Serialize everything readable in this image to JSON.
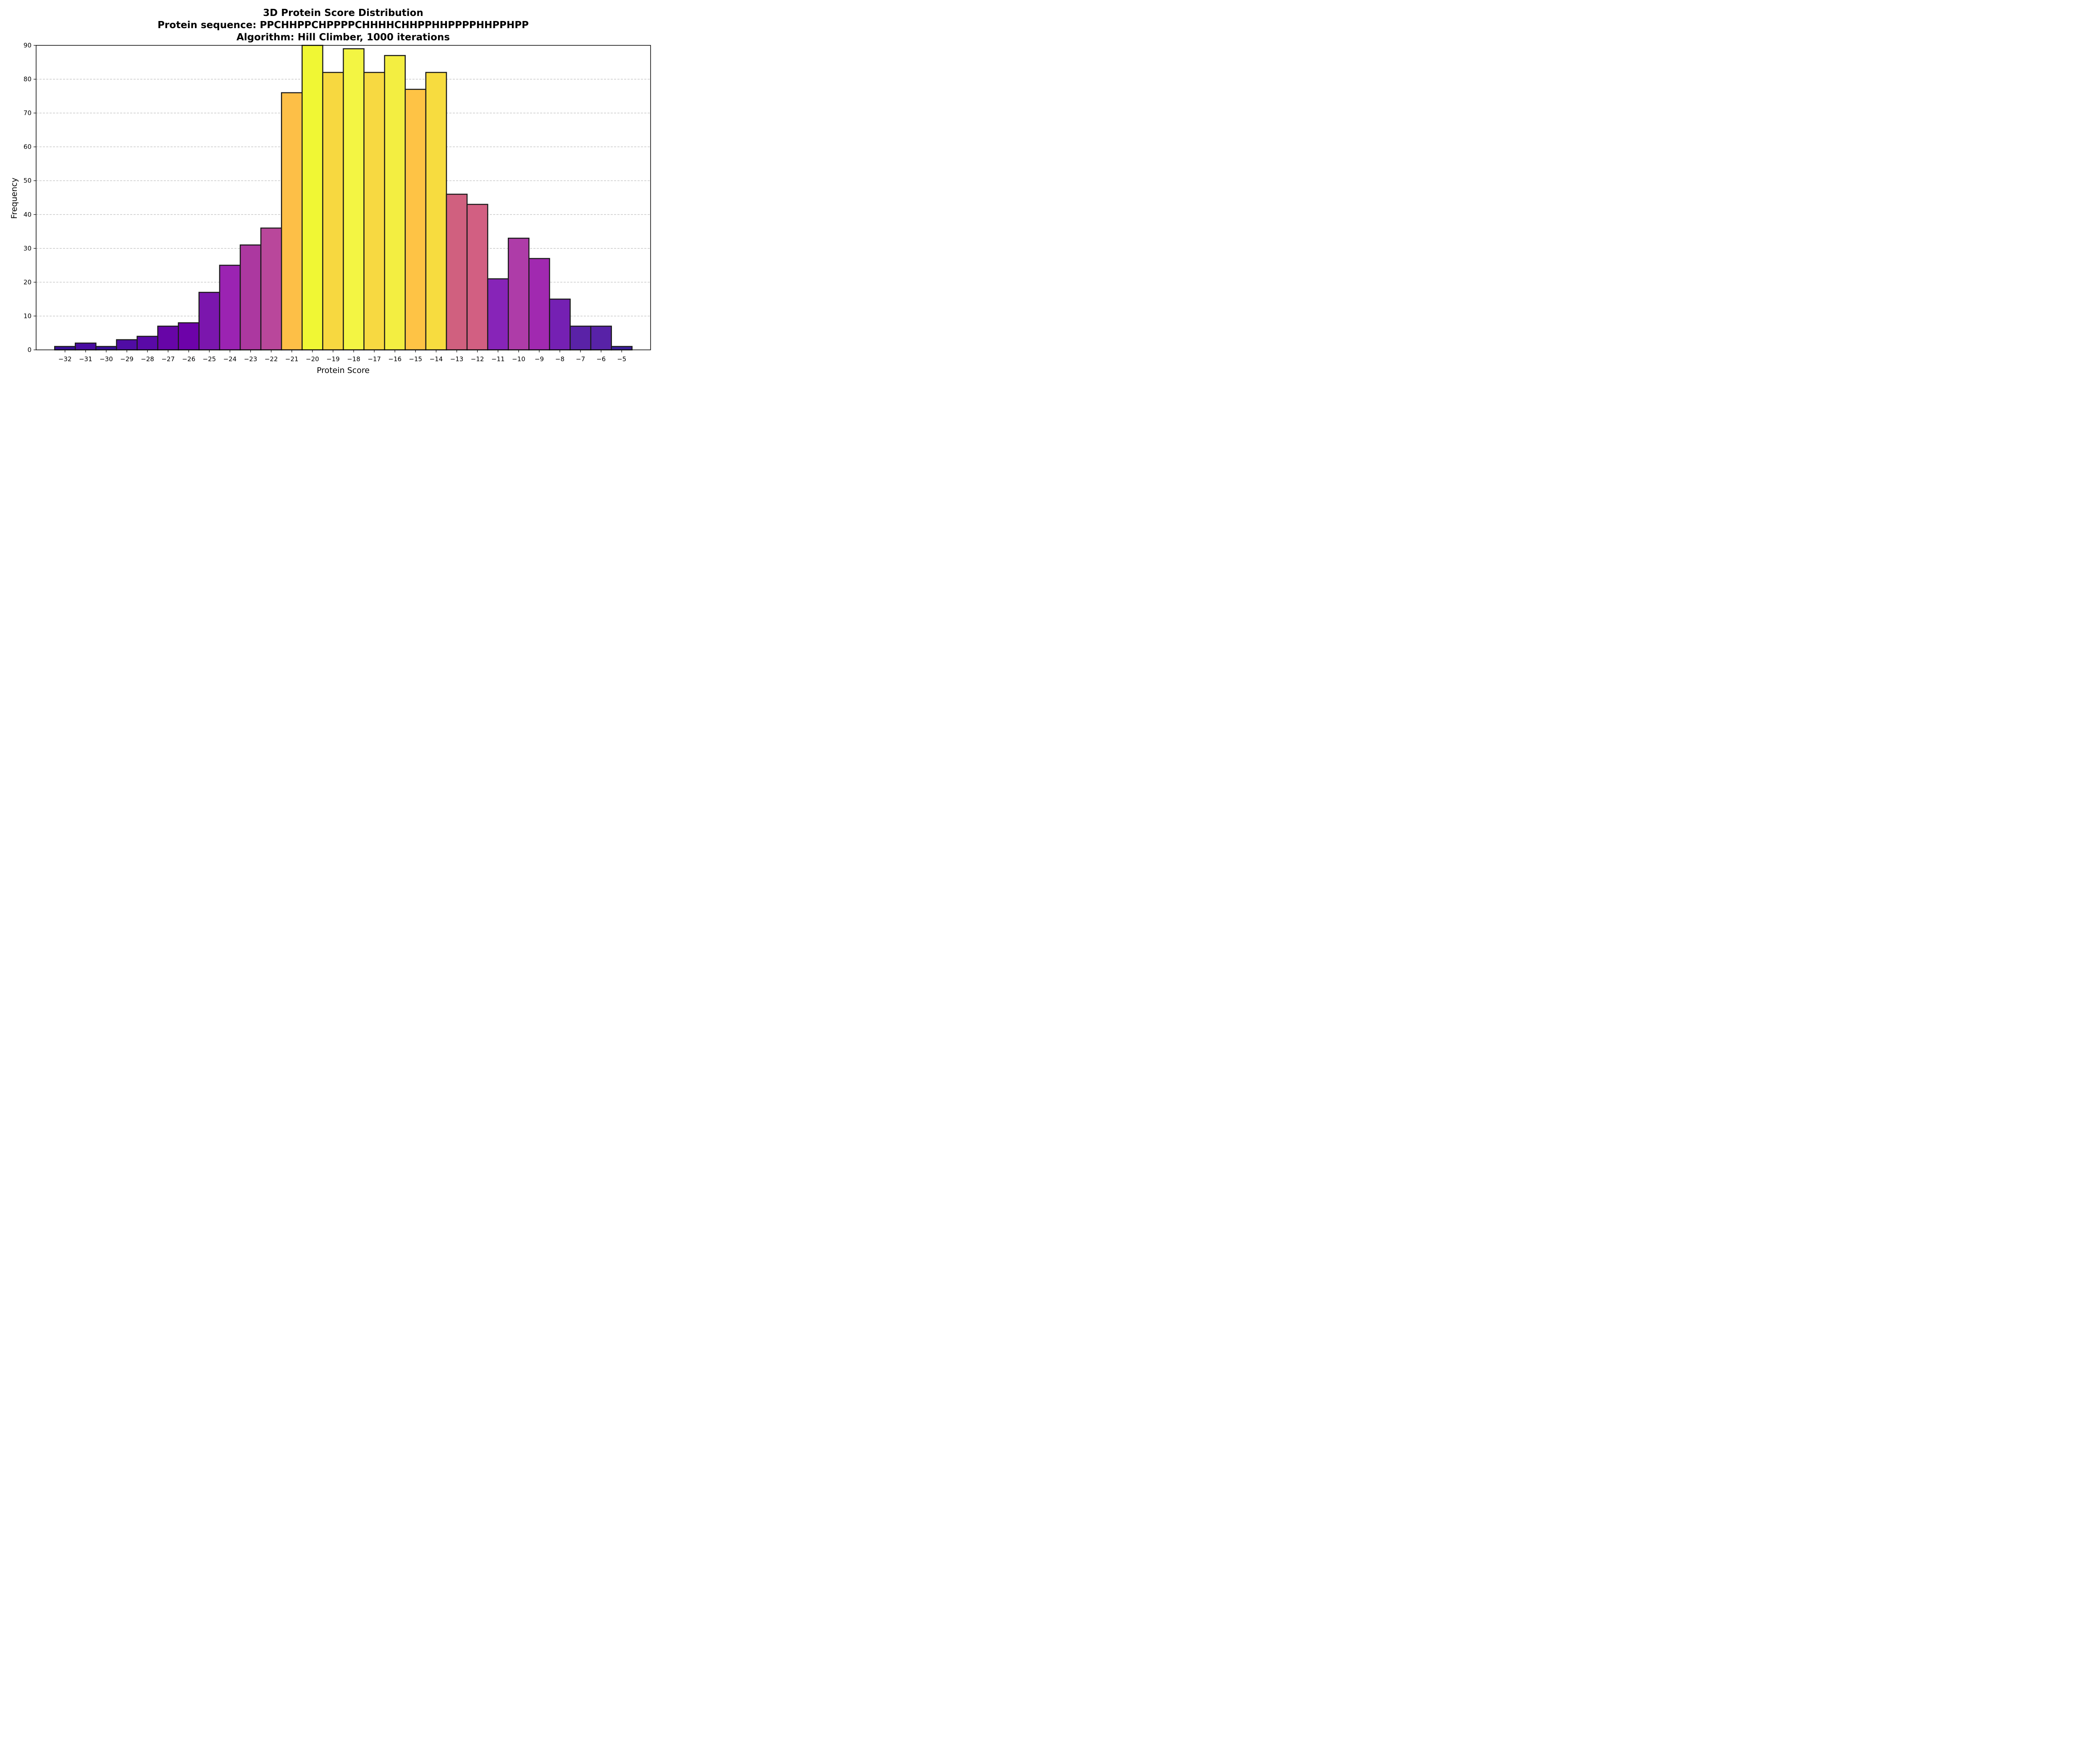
{
  "chart_data": {
    "type": "bar",
    "title_lines": [
      "3D Protein Score Distribution",
      "Protein sequence: PPCHHPPCHPPPPCHHHHCHHPPHHPPPPHHPPHPP",
      "Algorithm: Hill Climber, 1000 iterations"
    ],
    "xlabel": "Protein Score",
    "ylabel": "Frequency",
    "categories": [
      "−32",
      "−31",
      "−30",
      "−29",
      "−28",
      "−27",
      "−26",
      "−25",
      "−24",
      "−23",
      "−22",
      "−21",
      "−20",
      "−19",
      "−18",
      "−17",
      "−16",
      "−15",
      "−14",
      "−13",
      "−12",
      "−11",
      "−10",
      "−9",
      "−8",
      "−7",
      "−6",
      "−5"
    ],
    "x": [
      -32,
      -31,
      -30,
      -29,
      -28,
      -27,
      -26,
      -25,
      -24,
      -23,
      -22,
      -21,
      -20,
      -19,
      -18,
      -17,
      -16,
      -15,
      -14,
      -13,
      -12,
      -11,
      -10,
      -9,
      -8,
      -7,
      -6,
      -5
    ],
    "values": [
      1,
      2,
      1,
      3,
      4,
      7,
      8,
      17,
      25,
      31,
      36,
      76,
      90,
      82,
      89,
      82,
      87,
      77,
      82,
      46,
      43,
      21,
      33,
      27,
      15,
      7,
      7,
      1
    ],
    "ylim": [
      0,
      90
    ],
    "yticks": [
      0,
      10,
      20,
      30,
      40,
      50,
      60,
      70,
      80,
      90
    ],
    "xlim": [
      -33.4,
      -3.6
    ],
    "grid": "y-dashed",
    "colormap": "plasma",
    "colors": [
      "#3a0f9a",
      "#4a0ca2",
      "#3a0f9a",
      "#500ca4",
      "#5a09a7",
      "#6705a7",
      "#6d02a9",
      "#7b16ad",
      "#9b23b2",
      "#ac38a0",
      "#b9479b",
      "#fdbf47",
      "#f0f734",
      "#f7d840",
      "#f3f543",
      "#f7d941",
      "#f3ee41",
      "#fec345",
      "#f7dc3f",
      "#d0607f",
      "#d25f82",
      "#8724b8",
      "#ae3ca8",
      "#a129b0",
      "#7520b3",
      "#5a22a7",
      "#5822a7",
      "#3d1f9c"
    ],
    "edge_color": "#1a1a1a"
  }
}
